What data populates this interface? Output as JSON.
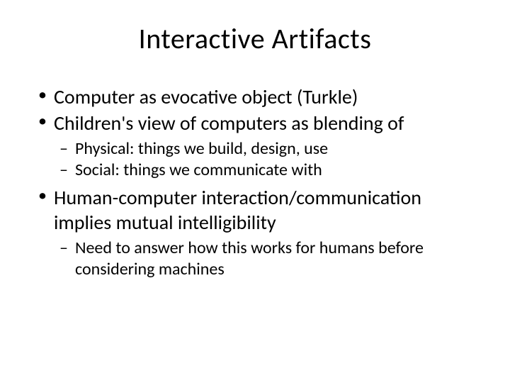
{
  "slide": {
    "title": "Interactive Artifacts",
    "bullets": [
      {
        "text": "Computer as evocative object (Turkle)",
        "sub": []
      },
      {
        "text": "Children's view of computers as blending of",
        "sub": [
          {
            "text": "Physical: things we build, design, use"
          },
          {
            "text": "Social: things we communicate with"
          }
        ]
      },
      {
        "text": "Human-computer interaction/communication implies mutual intelligibility",
        "sub": [
          {
            "text": "Need to answer how this works for humans before considering machines"
          }
        ]
      }
    ]
  },
  "style": {
    "background_color": "#ffffff",
    "text_color": "#000000",
    "title_fontsize": 40,
    "level1_fontsize": 28,
    "level2_fontsize": 24,
    "font_family": "Calibri"
  }
}
